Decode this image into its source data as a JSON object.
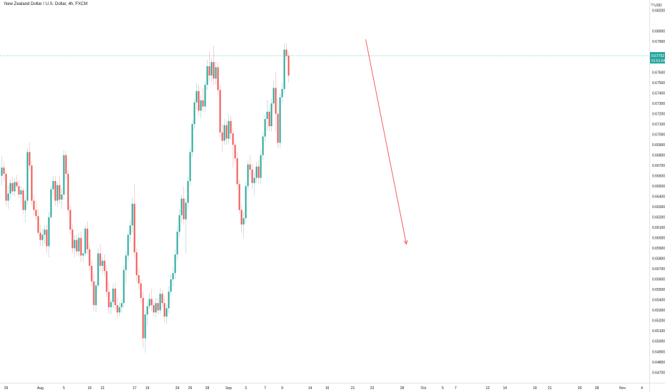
{
  "header": {
    "symbol_title": "New Zealand Dollar / U.S. Dollar, 4h, FXCM"
  },
  "price_axis": {
    "currency_label": "USD",
    "currency_icon": "lock-icon",
    "ticks": [
      "0.68200",
      "0.68000",
      "0.67900",
      "0.67700",
      "0.67600",
      "0.67500",
      "0.67400",
      "0.67300",
      "0.67200",
      "0.67100",
      "0.67000",
      "0.66900",
      "0.66800",
      "0.66700",
      "0.66600",
      "0.66500",
      "0.66400",
      "0.66300",
      "0.66200",
      "0.66100",
      "0.66000",
      "0.65900",
      "0.65800",
      "0.65700",
      "0.65600",
      "0.65500",
      "0.65400",
      "0.65300",
      "0.65200",
      "0.65100",
      "0.65000",
      "0.64900",
      "0.64800",
      "0.64700",
      "0.64600"
    ]
  },
  "time_axis": {
    "ticks": [
      {
        "label": "29",
        "bar": 2
      },
      {
        "label": "Aug",
        "bar": 18
      },
      {
        "label": "5",
        "bar": 29
      },
      {
        "label": "10",
        "bar": 41
      },
      {
        "label": "12",
        "bar": 47
      },
      {
        "label": "17",
        "bar": 62
      },
      {
        "label": "19",
        "bar": 68
      },
      {
        "label": "24",
        "bar": 82
      },
      {
        "label": "26",
        "bar": 88
      },
      {
        "label": "28",
        "bar": 96
      },
      {
        "label": "Sep",
        "bar": 106
      },
      {
        "label": "3",
        "bar": 114
      },
      {
        "label": "7",
        "bar": 123
      },
      {
        "label": "9",
        "bar": 131
      },
      {
        "label": "14",
        "bar": 144
      },
      {
        "label": "16",
        "bar": 152
      },
      {
        "label": "21",
        "bar": 164
      },
      {
        "label": "23",
        "bar": 173
      },
      {
        "label": "28",
        "bar": 187
      },
      {
        "label": "Oct",
        "bar": 197
      },
      {
        "label": "5",
        "bar": 206
      },
      {
        "label": "7",
        "bar": 212
      },
      {
        "label": "12",
        "bar": 227
      },
      {
        "label": "14",
        "bar": 235
      },
      {
        "label": "19",
        "bar": 249
      },
      {
        "label": "21",
        "bar": 256
      },
      {
        "label": "26",
        "bar": 270
      },
      {
        "label": "28",
        "bar": 278
      },
      {
        "label": "Nov",
        "bar": 290
      },
      {
        "label": "4",
        "bar": 299
      }
    ]
  },
  "price_tag": {
    "price": "0.67762",
    "countdown": "01:51:54",
    "color": "#26a69a"
  },
  "colors": {
    "up": "#26a69a",
    "down": "#ef5350",
    "arrow": "#ef5350",
    "price_line": "#26a69a"
  },
  "projection_arrow": {
    "from": {
      "bar": 170,
      "price": 0.6792
    },
    "to": {
      "bar": 189,
      "price": 0.6594
    }
  },
  "chart_data": {
    "type": "candlestick",
    "title": "New Zealand Dollar / U.S. Dollar, 4h, FXCM",
    "xlabel": "",
    "ylabel": "",
    "ylim": [
      0.646,
      0.683
    ],
    "grid": false,
    "current_price": 0.67762,
    "series": [
      {
        "ohlc": [
          [
            0.666,
            0.6679,
            0.6651,
            0.6668
          ],
          [
            0.6668,
            0.6674,
            0.6655,
            0.6662
          ],
          [
            0.6662,
            0.6664,
            0.6631,
            0.6636
          ],
          [
            0.6636,
            0.665,
            0.6628,
            0.6643
          ],
          [
            0.6643,
            0.6657,
            0.6637,
            0.6653
          ],
          [
            0.6653,
            0.6659,
            0.6641,
            0.6645
          ],
          [
            0.6645,
            0.6658,
            0.664,
            0.6654
          ],
          [
            0.6654,
            0.6661,
            0.6648,
            0.665
          ],
          [
            0.665,
            0.6656,
            0.6638,
            0.6642
          ],
          [
            0.6642,
            0.665,
            0.6633,
            0.6646
          ],
          [
            0.6646,
            0.6648,
            0.6623,
            0.6627
          ],
          [
            0.6627,
            0.6641,
            0.6615,
            0.6636
          ],
          [
            0.6636,
            0.6687,
            0.6632,
            0.6683
          ],
          [
            0.6683,
            0.6692,
            0.6666,
            0.667
          ],
          [
            0.667,
            0.6675,
            0.6632,
            0.6636
          ],
          [
            0.6636,
            0.6642,
            0.6622,
            0.6627
          ],
          [
            0.6627,
            0.6636,
            0.6617,
            0.6621
          ],
          [
            0.6621,
            0.6628,
            0.6602,
            0.6605
          ],
          [
            0.6605,
            0.6613,
            0.6592,
            0.6598
          ],
          [
            0.6598,
            0.6609,
            0.6592,
            0.6603
          ],
          [
            0.6603,
            0.6612,
            0.6594,
            0.6608
          ],
          [
            0.6608,
            0.6613,
            0.6585,
            0.6592
          ],
          [
            0.6592,
            0.6625,
            0.6581,
            0.662
          ],
          [
            0.662,
            0.6651,
            0.6618,
            0.6647
          ],
          [
            0.6647,
            0.666,
            0.664,
            0.6655
          ],
          [
            0.6655,
            0.666,
            0.6631,
            0.6636
          ],
          [
            0.6636,
            0.6654,
            0.663,
            0.6651
          ],
          [
            0.6651,
            0.666,
            0.6633,
            0.6637
          ],
          [
            0.6637,
            0.6648,
            0.6628,
            0.6642
          ],
          [
            0.6642,
            0.6685,
            0.6637,
            0.668
          ],
          [
            0.668,
            0.6684,
            0.6656,
            0.6662
          ],
          [
            0.6662,
            0.6666,
            0.6623,
            0.6627
          ],
          [
            0.6627,
            0.6632,
            0.6603,
            0.6608
          ],
          [
            0.6608,
            0.6613,
            0.6585,
            0.659
          ],
          [
            0.659,
            0.6603,
            0.6581,
            0.6598
          ],
          [
            0.6598,
            0.6603,
            0.6583,
            0.6587
          ],
          [
            0.6587,
            0.6605,
            0.6582,
            0.66
          ],
          [
            0.66,
            0.6606,
            0.6576,
            0.6583
          ],
          [
            0.6583,
            0.6588,
            0.6577,
            0.6585
          ],
          [
            0.6585,
            0.6612,
            0.6582,
            0.6609
          ],
          [
            0.6609,
            0.6616,
            0.6584,
            0.6589
          ],
          [
            0.6589,
            0.6594,
            0.6568,
            0.6573
          ],
          [
            0.6573,
            0.6579,
            0.6553,
            0.6558
          ],
          [
            0.6558,
            0.6566,
            0.6529,
            0.6535
          ],
          [
            0.6535,
            0.6558,
            0.6528,
            0.6554
          ],
          [
            0.6554,
            0.659,
            0.6551,
            0.6585
          ],
          [
            0.6585,
            0.6594,
            0.6568,
            0.6573
          ],
          [
            0.6573,
            0.6582,
            0.6565,
            0.6578
          ],
          [
            0.6578,
            0.6584,
            0.6563,
            0.6568
          ],
          [
            0.6568,
            0.6573,
            0.6543,
            0.6548
          ],
          [
            0.6548,
            0.6558,
            0.6527,
            0.6533
          ],
          [
            0.6533,
            0.6541,
            0.6526,
            0.6538
          ],
          [
            0.6538,
            0.6556,
            0.6532,
            0.6551
          ],
          [
            0.6551,
            0.6557,
            0.653,
            0.6535
          ],
          [
            0.6535,
            0.6543,
            0.6522,
            0.6528
          ],
          [
            0.6528,
            0.6538,
            0.6524,
            0.6533
          ],
          [
            0.6533,
            0.6541,
            0.6528,
            0.6537
          ],
          [
            0.6537,
            0.6573,
            0.6533,
            0.6569
          ],
          [
            0.6569,
            0.6587,
            0.6556,
            0.6583
          ],
          [
            0.6583,
            0.6607,
            0.6577,
            0.6603
          ],
          [
            0.6603,
            0.6618,
            0.6596,
            0.6612
          ],
          [
            0.6612,
            0.6639,
            0.6605,
            0.6633
          ],
          [
            0.6633,
            0.6652,
            0.658,
            0.6586
          ],
          [
            0.6586,
            0.659,
            0.6558,
            0.6564
          ],
          [
            0.6564,
            0.6572,
            0.655,
            0.6556
          ],
          [
            0.6556,
            0.656,
            0.6537,
            0.6542
          ],
          [
            0.6542,
            0.6548,
            0.6494,
            0.6503
          ],
          [
            0.6503,
            0.653,
            0.6489,
            0.6526
          ],
          [
            0.6526,
            0.6538,
            0.6515,
            0.6534
          ],
          [
            0.6534,
            0.6547,
            0.6531,
            0.6541
          ],
          [
            0.6541,
            0.6551,
            0.6529,
            0.6535
          ],
          [
            0.6535,
            0.6539,
            0.6524,
            0.6528
          ],
          [
            0.6528,
            0.6542,
            0.6523,
            0.6537
          ],
          [
            0.6537,
            0.6542,
            0.6526,
            0.653
          ],
          [
            0.653,
            0.6552,
            0.6527,
            0.6546
          ],
          [
            0.6546,
            0.655,
            0.6532,
            0.6537
          ],
          [
            0.6537,
            0.6543,
            0.6519,
            0.6524
          ],
          [
            0.6524,
            0.6536,
            0.6517,
            0.6532
          ],
          [
            0.6532,
            0.6553,
            0.6527,
            0.6548
          ],
          [
            0.6548,
            0.6565,
            0.6543,
            0.656
          ],
          [
            0.656,
            0.6572,
            0.6553,
            0.6566
          ],
          [
            0.6566,
            0.6589,
            0.656,
            0.6584
          ],
          [
            0.6584,
            0.6612,
            0.6578,
            0.6606
          ],
          [
            0.6606,
            0.6628,
            0.6601,
            0.6622
          ],
          [
            0.6622,
            0.6642,
            0.6614,
            0.6638
          ],
          [
            0.6638,
            0.665,
            0.6613,
            0.6618
          ],
          [
            0.6618,
            0.6638,
            0.6585,
            0.6634
          ],
          [
            0.6634,
            0.6659,
            0.6628,
            0.6655
          ],
          [
            0.6655,
            0.6688,
            0.665,
            0.6683
          ],
          [
            0.6683,
            0.6714,
            0.6678,
            0.671
          ],
          [
            0.671,
            0.6735,
            0.6705,
            0.6731
          ],
          [
            0.6731,
            0.675,
            0.6724,
            0.6742
          ],
          [
            0.6742,
            0.6748,
            0.6718,
            0.6723
          ],
          [
            0.6723,
            0.6738,
            0.6716,
            0.6733
          ],
          [
            0.6733,
            0.6745,
            0.6722,
            0.6727
          ],
          [
            0.6727,
            0.6752,
            0.6722,
            0.6748
          ],
          [
            0.6748,
            0.6772,
            0.6743,
            0.6766
          ],
          [
            0.6766,
            0.678,
            0.6752,
            0.6757
          ],
          [
            0.6757,
            0.6774,
            0.6751,
            0.677
          ],
          [
            0.677,
            0.6786,
            0.6748,
            0.6754
          ],
          [
            0.6754,
            0.677,
            0.6748,
            0.6765
          ],
          [
            0.6765,
            0.677,
            0.6738,
            0.6743
          ],
          [
            0.6743,
            0.6748,
            0.6697,
            0.6702
          ],
          [
            0.6702,
            0.671,
            0.6683,
            0.6694
          ],
          [
            0.6694,
            0.6715,
            0.669,
            0.6709
          ],
          [
            0.6709,
            0.6714,
            0.669,
            0.6696
          ],
          [
            0.6696,
            0.672,
            0.6691,
            0.6713
          ],
          [
            0.6713,
            0.6718,
            0.6695,
            0.6701
          ],
          [
            0.6701,
            0.6706,
            0.6668,
            0.669
          ],
          [
            0.669,
            0.6694,
            0.6672,
            0.6677
          ],
          [
            0.6677,
            0.6683,
            0.6647,
            0.6652
          ],
          [
            0.6652,
            0.6656,
            0.6623,
            0.6627
          ],
          [
            0.6627,
            0.6633,
            0.6605,
            0.6613
          ],
          [
            0.6613,
            0.6625,
            0.66,
            0.6619
          ],
          [
            0.6619,
            0.6654,
            0.6614,
            0.665
          ],
          [
            0.665,
            0.6675,
            0.6645,
            0.6671
          ],
          [
            0.6671,
            0.668,
            0.6658,
            0.6666
          ],
          [
            0.6666,
            0.6672,
            0.6647,
            0.6653
          ],
          [
            0.6653,
            0.6664,
            0.6641,
            0.6658
          ],
          [
            0.6658,
            0.6674,
            0.6653,
            0.6669
          ],
          [
            0.6669,
            0.6676,
            0.6652,
            0.6658
          ],
          [
            0.6658,
            0.6685,
            0.6652,
            0.668
          ],
          [
            0.668,
            0.6703,
            0.6675,
            0.6698
          ],
          [
            0.6698,
            0.672,
            0.6693,
            0.6715
          ],
          [
            0.6715,
            0.6733,
            0.6704,
            0.6722
          ],
          [
            0.6722,
            0.6728,
            0.6703,
            0.6708
          ],
          [
            0.6708,
            0.6735,
            0.6703,
            0.673
          ],
          [
            0.673,
            0.6752,
            0.6725,
            0.6745
          ],
          [
            0.6745,
            0.676,
            0.6703,
            0.672
          ],
          [
            0.672,
            0.6735,
            0.6687,
            0.6692
          ],
          [
            0.6692,
            0.674,
            0.6686,
            0.6736
          ],
          [
            0.6736,
            0.675,
            0.673,
            0.6744
          ],
          [
            0.6744,
            0.6788,
            0.674,
            0.6782
          ],
          [
            0.6782,
            0.6788,
            0.6772,
            0.6776
          ],
          [
            0.6776,
            0.678,
            0.675,
            0.6757
          ]
        ]
      }
    ]
  }
}
